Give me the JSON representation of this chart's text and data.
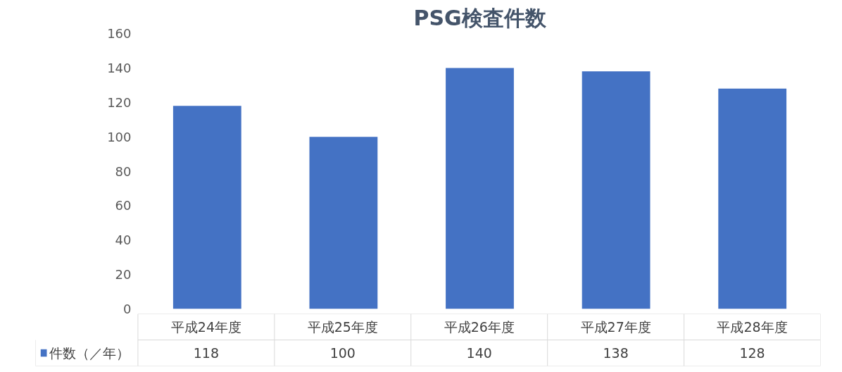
{
  "chart_data": {
    "type": "bar",
    "title": "PSG検査件数",
    "categories": [
      "平成24年度",
      "平成25年度",
      "平成26年度",
      "平成27年度",
      "平成28年度"
    ],
    "series": [
      {
        "name": "件数（／年）",
        "color": "#4472c4",
        "values": [
          118,
          100,
          140,
          138,
          128
        ]
      }
    ],
    "ylim": [
      0,
      160
    ],
    "yticks": [
      0,
      20,
      40,
      60,
      80,
      100,
      120,
      140,
      160
    ],
    "grid": false,
    "data_labels": true,
    "legend": "bottom"
  }
}
